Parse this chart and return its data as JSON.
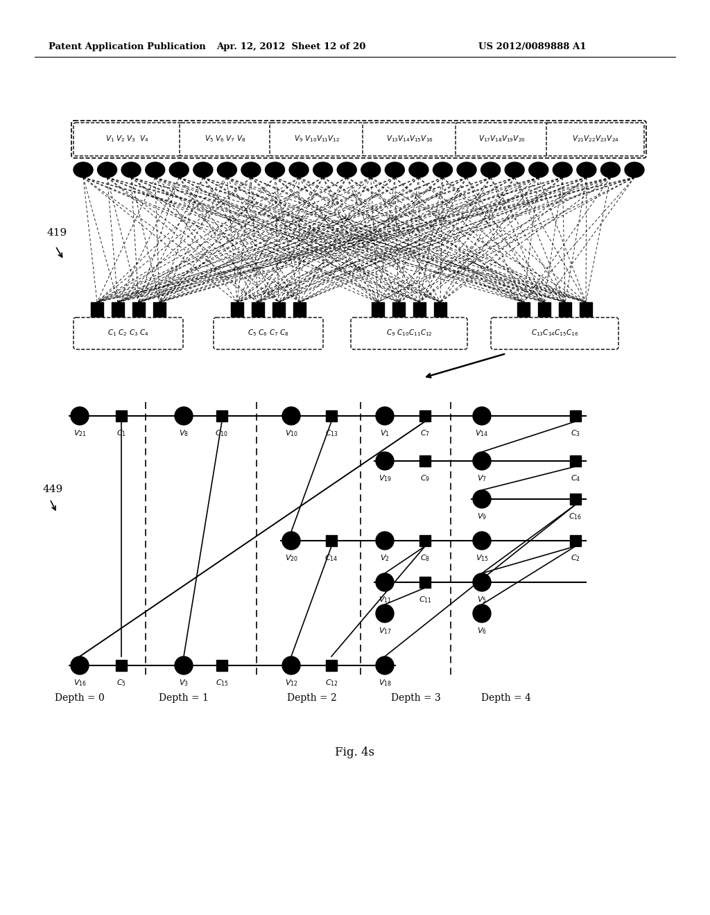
{
  "header_left": "Patent Application Publication",
  "header_mid": "Apr. 12, 2012  Sheet 12 of 20",
  "header_right": "US 2012/0089888 A1",
  "fig_label": "Fig. 4s",
  "background": "#ffffff"
}
